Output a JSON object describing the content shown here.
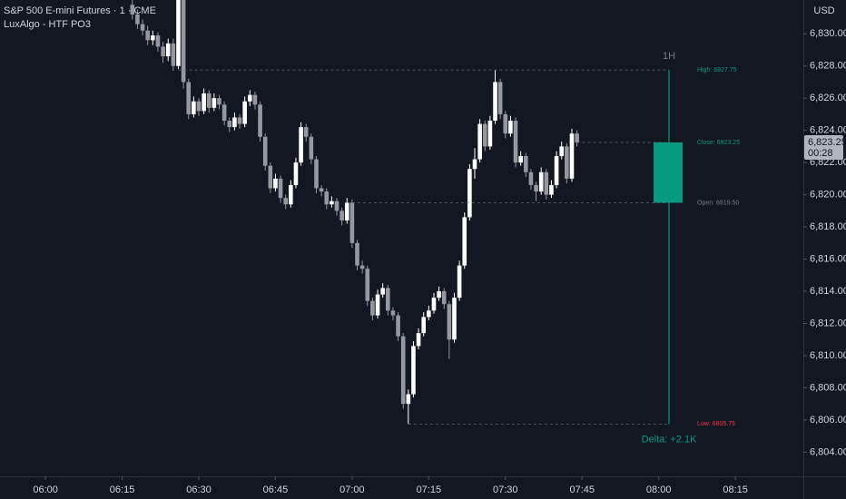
{
  "chart_data": {
    "type": "candlestick",
    "title": "S&P 500 E-mini Futures · 1 · CME",
    "subtitle": "LuxAlgo - HTF PO3",
    "currency": "USD",
    "bull_color": "#ffffff",
    "bear_color": "#9598a1",
    "grid": false,
    "x": [
      377,
      378,
      379,
      380,
      381,
      382,
      383,
      384,
      385,
      386,
      387,
      388,
      389,
      390,
      391,
      392,
      393,
      394,
      395,
      396,
      397,
      398,
      399,
      400,
      401,
      402,
      403,
      404,
      405,
      406,
      407,
      408,
      409,
      410,
      411,
      412,
      413,
      414,
      415,
      416,
      417,
      418,
      419,
      420,
      421,
      422,
      423,
      424,
      425,
      426,
      427,
      428,
      429,
      430,
      431,
      432,
      433,
      434,
      435,
      436,
      437,
      438,
      439,
      440,
      441,
      442,
      443,
      444,
      445,
      446,
      447,
      448,
      449,
      450,
      451,
      452,
      453,
      454,
      455,
      456,
      457,
      458,
      459,
      460,
      461,
      462,
      463,
      464
    ],
    "candles": [
      [
        6831.8,
        6832.2,
        6830.9,
        6831.2
      ],
      [
        6831.2,
        6831.5,
        6830.3,
        6830.6
      ],
      [
        6830.6,
        6830.9,
        6829.9,
        6830.2
      ],
      [
        6830.2,
        6830.5,
        6829.3,
        6829.6
      ],
      [
        6829.6,
        6830.2,
        6829.3,
        6829.9
      ],
      [
        6829.9,
        6830.1,
        6828.9,
        6829.2
      ],
      [
        6829.2,
        6829.5,
        6828.2,
        6828.6
      ],
      [
        6828.6,
        6829.7,
        6828.3,
        6829.4
      ],
      [
        6829.4,
        6829.7,
        6827.7,
        6828.0
      ],
      [
        6828.0,
        6832.6,
        6827.8,
        6832.5
      ],
      [
        6832.5,
        6832.6,
        6826.6,
        6827.0
      ],
      [
        6827.0,
        6827.2,
        6824.7,
        6825.0
      ],
      [
        6825.0,
        6826.1,
        6824.8,
        6825.8
      ],
      [
        6825.8,
        6826.0,
        6824.9,
        6825.2
      ],
      [
        6825.2,
        6826.6,
        6825.0,
        6826.3
      ],
      [
        6826.3,
        6826.5,
        6825.1,
        6825.4
      ],
      [
        6825.4,
        6826.3,
        6825.2,
        6826.0
      ],
      [
        6826.0,
        6826.2,
        6825.3,
        6825.6
      ],
      [
        6825.6,
        6825.8,
        6824.3,
        6824.6
      ],
      [
        6824.6,
        6824.8,
        6823.9,
        6824.2
      ],
      [
        6824.2,
        6825.1,
        6824.0,
        6824.8
      ],
      [
        6824.8,
        6825.0,
        6824.1,
        6824.4
      ],
      [
        6824.4,
        6826.1,
        6824.2,
        6825.8
      ],
      [
        6825.8,
        6826.5,
        6825.5,
        6826.2
      ],
      [
        6826.2,
        6826.4,
        6825.3,
        6825.6
      ],
      [
        6825.6,
        6825.8,
        6823.3,
        6823.6
      ],
      [
        6823.6,
        6823.8,
        6821.5,
        6821.8
      ],
      [
        6821.8,
        6822.0,
        6820.1,
        6820.4
      ],
      [
        6820.4,
        6821.3,
        6820.2,
        6821.0
      ],
      [
        6821.0,
        6821.2,
        6819.5,
        6819.8
      ],
      [
        6819.8,
        6820.0,
        6819.1,
        6819.4
      ],
      [
        6819.4,
        6820.9,
        6819.2,
        6820.6
      ],
      [
        6820.6,
        6822.3,
        6820.4,
        6822.0
      ],
      [
        6822.0,
        6824.5,
        6821.8,
        6824.2
      ],
      [
        6824.2,
        6824.4,
        6823.3,
        6823.6
      ],
      [
        6823.6,
        6823.8,
        6821.9,
        6822.2
      ],
      [
        6822.2,
        6822.4,
        6820.1,
        6820.4
      ],
      [
        6820.4,
        6820.6,
        6819.9,
        6820.2
      ],
      [
        6820.2,
        6820.4,
        6819.1,
        6819.4
      ],
      [
        6819.4,
        6819.9,
        6819.2,
        6819.6
      ],
      [
        6819.6,
        6819.8,
        6818.7,
        6819.0
      ],
      [
        6819.0,
        6819.2,
        6818.1,
        6818.4
      ],
      [
        6818.4,
        6819.8,
        6818.2,
        6819.5
      ],
      [
        6819.5,
        6819.7,
        6816.7,
        6817.0
      ],
      [
        6817.0,
        6817.2,
        6815.3,
        6815.6
      ],
      [
        6815.6,
        6815.9,
        6815.1,
        6815.4
      ],
      [
        6815.4,
        6815.6,
        6813.1,
        6813.4
      ],
      [
        6813.4,
        6813.6,
        6812.2,
        6812.5
      ],
      [
        6812.5,
        6814.1,
        6812.3,
        6813.8
      ],
      [
        6813.8,
        6814.5,
        6813.6,
        6814.2
      ],
      [
        6814.2,
        6814.4,
        6812.5,
        6812.8
      ],
      [
        6812.8,
        6813.0,
        6812.2,
        6812.5
      ],
      [
        6812.5,
        6812.7,
        6810.9,
        6811.2
      ],
      [
        6811.2,
        6811.4,
        6806.7,
        6807.0
      ],
      [
        6807.0,
        6807.9,
        6805.75,
        6807.6
      ],
      [
        6807.6,
        6810.9,
        6807.4,
        6810.6
      ],
      [
        6810.6,
        6811.7,
        6810.4,
        6811.4
      ],
      [
        6811.4,
        6812.7,
        6811.2,
        6812.4
      ],
      [
        6812.4,
        6813.1,
        6812.2,
        6812.8
      ],
      [
        6812.8,
        6813.9,
        6812.6,
        6813.6
      ],
      [
        6813.6,
        6814.3,
        6813.4,
        6814.0
      ],
      [
        6814.0,
        6814.2,
        6812.9,
        6813.2
      ],
      [
        6813.2,
        6813.4,
        6809.8,
        6811.0
      ],
      [
        6811.0,
        6813.9,
        6810.8,
        6813.6
      ],
      [
        6813.6,
        6815.9,
        6813.4,
        6815.6
      ],
      [
        6815.6,
        6818.9,
        6815.4,
        6818.6
      ],
      [
        6818.6,
        6821.9,
        6818.4,
        6821.6
      ],
      [
        6821.6,
        6822.9,
        6821.0,
        6822.2
      ],
      [
        6822.2,
        6824.7,
        6822.0,
        6824.4
      ],
      [
        6824.4,
        6824.6,
        6822.7,
        6823.0
      ],
      [
        6823.0,
        6824.9,
        6822.8,
        6824.6
      ],
      [
        6824.6,
        6827.75,
        6824.4,
        6827.0
      ],
      [
        6827.0,
        6827.2,
        6824.7,
        6825.0
      ],
      [
        6825.0,
        6825.2,
        6823.5,
        6823.8
      ],
      [
        6823.8,
        6824.9,
        6823.6,
        6824.6
      ],
      [
        6824.6,
        6824.8,
        6821.7,
        6822.0
      ],
      [
        6822.0,
        6822.7,
        6821.8,
        6822.4
      ],
      [
        6822.4,
        6822.6,
        6821.1,
        6821.4
      ],
      [
        6821.4,
        6821.6,
        6820.3,
        6820.6
      ],
      [
        6820.6,
        6820.8,
        6819.6,
        6820.2
      ],
      [
        6820.2,
        6821.7,
        6820.0,
        6821.4
      ],
      [
        6821.4,
        6821.6,
        6819.7,
        6820.0
      ],
      [
        6820.0,
        6820.9,
        6819.8,
        6820.6
      ],
      [
        6820.6,
        6822.7,
        6820.4,
        6822.4
      ],
      [
        6822.4,
        6823.3,
        6822.2,
        6823.0
      ],
      [
        6823.0,
        6823.2,
        6820.7,
        6821.0
      ],
      [
        6821.0,
        6824.1,
        6820.8,
        6823.8
      ],
      [
        6823.8,
        6824.0,
        6823.0,
        6823.25
      ]
    ],
    "ylim": [
      6802.5,
      6832.1
    ],
    "yticks": [
      {
        "value": 6804,
        "label": "6,804.00"
      },
      {
        "value": 6806,
        "label": "6,806.00"
      },
      {
        "value": 6808,
        "label": "6,808.00"
      },
      {
        "value": 6810,
        "label": "6,810.00"
      },
      {
        "value": 6812,
        "label": "6,812.00"
      },
      {
        "value": 6814,
        "label": "6,814.00"
      },
      {
        "value": 6816,
        "label": "6,816.00"
      },
      {
        "value": 6818,
        "label": "6,818.00"
      },
      {
        "value": 6820,
        "label": "6,820.00"
      },
      {
        "value": 6822,
        "label": "6,822.00"
      },
      {
        "value": 6824,
        "label": "6,824.00"
      },
      {
        "value": 6826,
        "label": "6,826.00"
      },
      {
        "value": 6828,
        "label": "6,828.00"
      },
      {
        "value": 6830,
        "label": "6,830.00"
      }
    ],
    "xlim": [
      351.1,
      508.3
    ],
    "xticks": [
      {
        "value": 360,
        "label": "06:00"
      },
      {
        "value": 375,
        "label": "06:15"
      },
      {
        "value": 390,
        "label": "06:30"
      },
      {
        "value": 405,
        "label": "06:45"
      },
      {
        "value": 420,
        "label": "07:00"
      },
      {
        "value": 435,
        "label": "07:15"
      },
      {
        "value": 450,
        "label": "07:30"
      },
      {
        "value": 465,
        "label": "07:45"
      },
      {
        "value": 480,
        "label": "08:00"
      },
      {
        "value": 495,
        "label": "08:15"
      }
    ],
    "last_price_label": "6,823.25",
    "countdown": "00:28",
    "po3": {
      "timeframe": "1H",
      "open": 6819.5,
      "high": 6827.75,
      "low": 6805.75,
      "close": 6823.25,
      "open_label": "Open: 6819.50",
      "high_label": "High: 6827.75",
      "low_label": "Low: 6805.75",
      "close_label": "Close: 6823.25",
      "delta_label": "Delta: +2.1K",
      "bull_color": "#089981",
      "low_color": "#f23645",
      "neutral_color": "#787b86"
    }
  }
}
